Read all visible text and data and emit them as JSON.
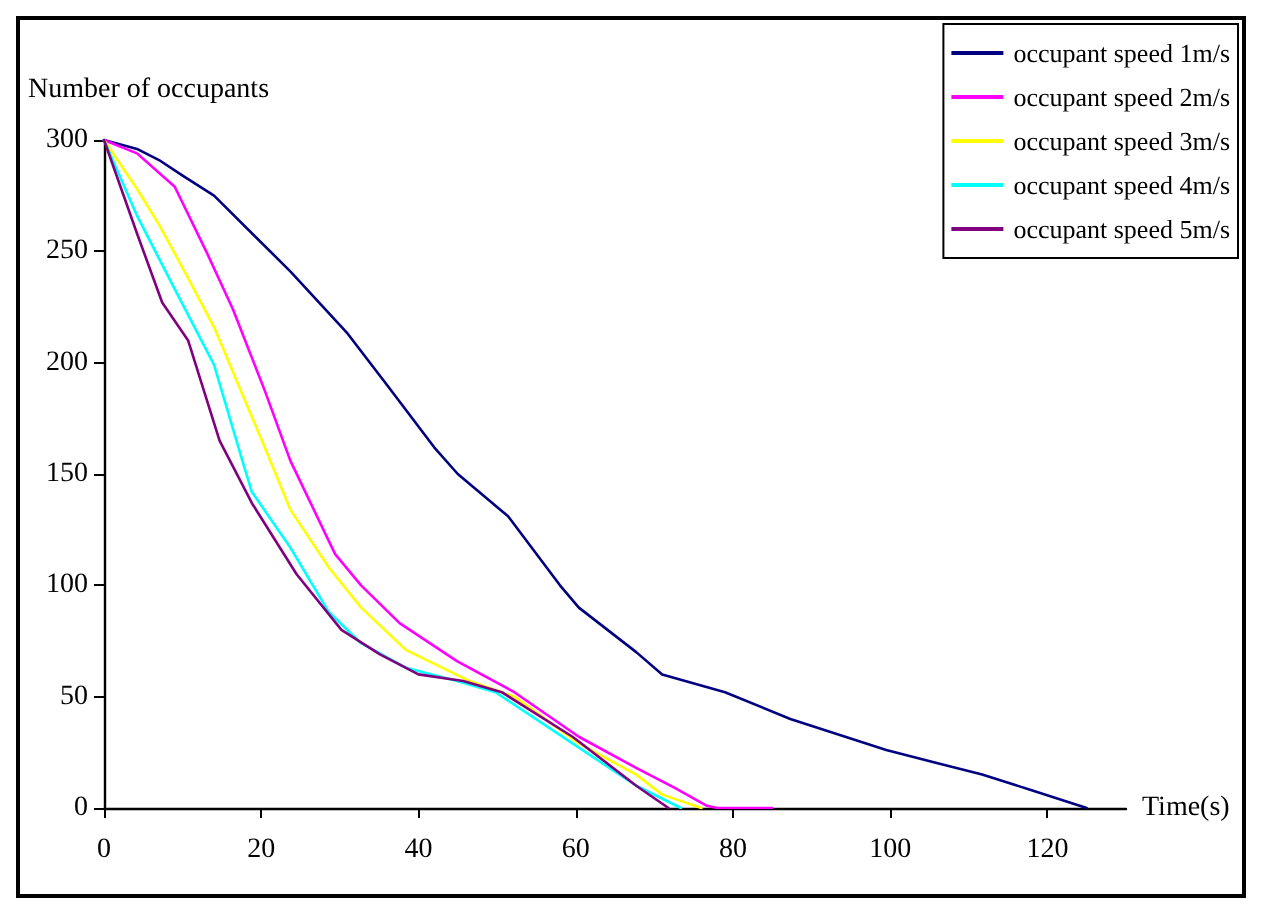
{
  "chart_data": {
    "type": "line",
    "xlabel": "Time(s)",
    "ylabel": "Number of occupants",
    "xlim": [
      0,
      130
    ],
    "xticks": [
      0,
      20,
      40,
      60,
      80,
      100,
      120
    ],
    "ylim": [
      0,
      300
    ],
    "yticks": [
      0,
      50,
      100,
      150,
      200,
      250,
      300
    ],
    "grid": false,
    "legend": "top right",
    "marker": "none",
    "line_style": "solid",
    "series": [
      {
        "name": "occupant speed 1m/s",
        "color": "#000080",
        "x": [
          0,
          4.2,
          7,
          10,
          14,
          23.7,
          31,
          36,
          42,
          45,
          51.4,
          58,
          60.4,
          67.7,
          71,
          79,
          87.3,
          99.5,
          111.7,
          118,
          125
        ],
        "values": [
          300,
          296,
          291,
          284,
          275,
          241,
          213,
          190,
          162,
          150,
          131,
          100,
          90,
          70,
          60,
          52,
          40,
          26,
          15,
          8,
          0
        ]
      },
      {
        "name": "occupant speed 2m/s",
        "color": "#ff00ff",
        "x": [
          0,
          4.2,
          9,
          13,
          16.4,
          20.5,
          23.7,
          29.4,
          32.7,
          37.6,
          44.9,
          52.2,
          60.4,
          67.7,
          72.6,
          76.7,
          78,
          85
        ],
        "values": [
          300,
          294,
          279,
          250,
          224,
          187,
          156,
          114,
          100,
          83,
          66,
          52,
          32,
          18,
          9,
          1,
          0,
          0
        ]
      },
      {
        "name": "occupant speed 3m/s",
        "color": "#ffff00",
        "x": [
          0,
          4.2,
          7,
          10.7,
          14,
          17.1,
          20.8,
          23.7,
          28.6,
          32.7,
          38.4,
          46.5,
          52.2,
          60.4,
          67.7,
          71,
          76
        ],
        "values": [
          300,
          278,
          262,
          238,
          216,
          190,
          159,
          134,
          108,
          90,
          71,
          57,
          50,
          29,
          15,
          6,
          0
        ]
      },
      {
        "name": "occupant speed 4m/s",
        "color": "#00ffff",
        "x": [
          0,
          4.2,
          9,
          14,
          17.6,
          18.8,
          23.7,
          28.6,
          32.7,
          38.4,
          44.9,
          49.8,
          59.6,
          67.7,
          73.4
        ],
        "values": [
          300,
          266,
          233,
          199,
          156,
          142,
          117,
          88,
          74,
          63,
          57,
          52,
          29,
          10,
          0
        ]
      },
      {
        "name": "occupant speed 5m/s",
        "color": "#800080",
        "x": [
          0,
          4.2,
          7.4,
          10.7,
          14.7,
          18.8,
          24.5,
          30.2,
          35.1,
          40,
          45.7,
          50.6,
          59.6,
          67.7,
          71.8
        ],
        "values": [
          300,
          258,
          227,
          210,
          165,
          137,
          105,
          80,
          69,
          60,
          57,
          52,
          32,
          10,
          0
        ]
      }
    ]
  }
}
